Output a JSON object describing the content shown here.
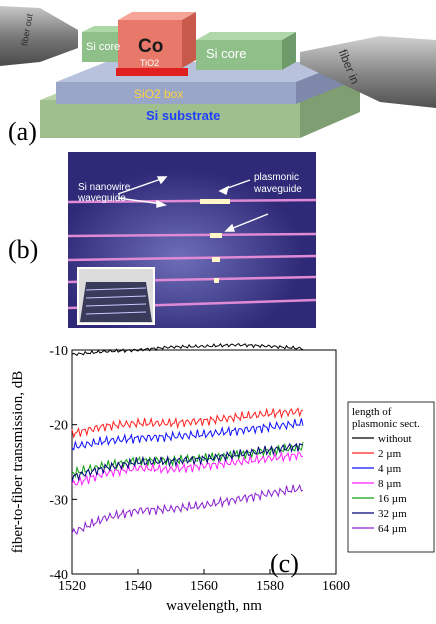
{
  "panel_a": {
    "label": "(a)",
    "si_core_left": "Si core",
    "si_core_right": "Si core",
    "metal": "Co",
    "oxide": "TiO2",
    "box": "SiO2 box",
    "substrate": "Si substrate",
    "fiber_out": "fiber out",
    "fiber_in": "fiber in",
    "colors": {
      "substrate": "#9fbf8f",
      "box": "#9aa6c8",
      "core": "#8fc08a",
      "metal": "#e8796a",
      "oxide": "#e02020",
      "fiber": "#8a8a8a"
    }
  },
  "panel_b": {
    "label": "(b)",
    "annotation_left": "Si nanowire\nwaveguide",
    "annotation_right": "plasmonic\nwaveguide",
    "colors": {
      "background": "#2f2a78",
      "line": "#e08ad6",
      "bright": "#fff7c8"
    }
  },
  "panel_c": {
    "label": "(c)",
    "legend_title": "length of\nplasmonic sect.",
    "chart_data": {
      "type": "line",
      "xlabel": "wavelength, nm",
      "ylabel": "fiber-to-fiber transmission, dB",
      "xlim": [
        1520,
        1600
      ],
      "ylim": [
        -40,
        -10
      ],
      "xticks": [
        "1520",
        "1540",
        "1560",
        "1580",
        "1600"
      ],
      "yticks": [
        "-10",
        "-20",
        "-30",
        "-40"
      ],
      "grid": false,
      "legend_position": "right",
      "series": [
        {
          "name": "without",
          "color": "#000000",
          "x": [
            1520,
            1530,
            1540,
            1550,
            1560,
            1570,
            1580,
            1590
          ],
          "y": [
            -10.6,
            -10.2,
            -10.0,
            -9.6,
            -9.5,
            -9.3,
            -9.5,
            -9.8
          ]
        },
        {
          "name": "2 µm",
          "color": "#ff2020",
          "x": [
            1520,
            1530,
            1540,
            1550,
            1560,
            1570,
            1580,
            1590
          ],
          "y": [
            -21.2,
            -20.2,
            -19.8,
            -19.8,
            -19.5,
            -19.0,
            -18.5,
            -18.2
          ]
        },
        {
          "name": "4 µm",
          "color": "#1010ff",
          "x": [
            1520,
            1530,
            1540,
            1550,
            1560,
            1570,
            1580,
            1590
          ],
          "y": [
            -23.0,
            -22.2,
            -21.8,
            -21.6,
            -21.3,
            -20.8,
            -20.3,
            -19.8
          ]
        },
        {
          "name": "8 µm",
          "color": "#ff20ff",
          "x": [
            1520,
            1530,
            1540,
            1550,
            1560,
            1570,
            1580,
            1590
          ],
          "y": [
            -28.0,
            -26.5,
            -25.8,
            -26.0,
            -25.5,
            -25.0,
            -24.5,
            -24.0
          ]
        },
        {
          "name": "16 µm",
          "color": "#10a010",
          "x": [
            1520,
            1530,
            1540,
            1550,
            1560,
            1570,
            1580,
            1590
          ],
          "y": [
            -26.5,
            -25.5,
            -24.8,
            -24.8,
            -24.5,
            -24.0,
            -23.5,
            -23.0
          ]
        },
        {
          "name": "32 µm",
          "color": "#00007a",
          "x": [
            1520,
            1530,
            1540,
            1550,
            1560,
            1570,
            1580,
            1590
          ],
          "y": [
            -27.0,
            -25.8,
            -25.0,
            -24.9,
            -24.6,
            -24.0,
            -23.4,
            -22.8
          ]
        },
        {
          "name": "64 µm",
          "color": "#8a20d0",
          "x": [
            1520,
            1530,
            1540,
            1550,
            1560,
            1570,
            1580,
            1590
          ],
          "y": [
            -34.5,
            -32.5,
            -31.5,
            -31.3,
            -30.8,
            -30.0,
            -29.2,
            -28.5
          ]
        }
      ]
    }
  }
}
